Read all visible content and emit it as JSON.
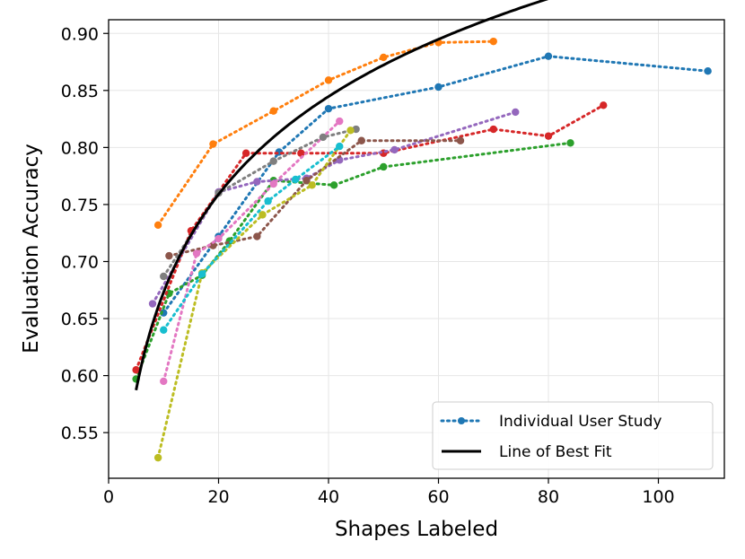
{
  "chart_data": {
    "type": "line",
    "title": "",
    "xlabel": "Shapes Labeled",
    "ylabel": "Evaluation Accuracy",
    "xlim": [
      0,
      112
    ],
    "ylim": [
      0.51,
      0.912
    ],
    "xticks": [
      0,
      20,
      40,
      60,
      80,
      100
    ],
    "xtick_labels": [
      "0",
      "20",
      "40",
      "60",
      "80",
      "100"
    ],
    "yticks": [
      0.55,
      0.6,
      0.65,
      0.7,
      0.75,
      0.8,
      0.85,
      0.9
    ],
    "ytick_labels": [
      "0.55",
      "0.60",
      "0.65",
      "0.70",
      "0.75",
      "0.80",
      "0.85",
      "0.90"
    ],
    "grid": true,
    "legend_position": "bottom-right",
    "legend": [
      {
        "label": "Individual User Study",
        "color": "#1f77b4",
        "style": "dotted-marker"
      },
      {
        "label": "Line of Best Fit",
        "color": "#000000",
        "style": "solid"
      }
    ],
    "series": [
      {
        "name": "user-blue",
        "color": "#1f77b4",
        "x": [
          10,
          20,
          31,
          40,
          60,
          80,
          109
        ],
        "y": [
          0.655,
          0.722,
          0.796,
          0.834,
          0.853,
          0.88,
          0.867
        ]
      },
      {
        "name": "user-orange",
        "color": "#ff7f0e",
        "x": [
          9,
          19,
          30,
          40,
          50,
          60,
          70
        ],
        "y": [
          0.732,
          0.803,
          0.832,
          0.859,
          0.879,
          0.892,
          0.893
        ]
      },
      {
        "name": "user-green",
        "color": "#2ca02c",
        "x": [
          5,
          11,
          17,
          22,
          30,
          41,
          50,
          84
        ],
        "y": [
          0.597,
          0.672,
          0.688,
          0.718,
          0.771,
          0.767,
          0.783,
          0.804
        ]
      },
      {
        "name": "user-red",
        "color": "#d62728",
        "x": [
          5,
          15,
          25,
          35,
          50,
          70,
          80,
          90
        ],
        "y": [
          0.605,
          0.727,
          0.795,
          0.795,
          0.795,
          0.816,
          0.81,
          0.837
        ]
      },
      {
        "name": "user-purple",
        "color": "#9467bd",
        "x": [
          8,
          20,
          27,
          36,
          42,
          52,
          74
        ],
        "y": [
          0.663,
          0.761,
          0.77,
          0.773,
          0.789,
          0.798,
          0.831
        ]
      },
      {
        "name": "user-brown",
        "color": "#8c564b",
        "x": [
          11,
          19,
          27,
          36,
          46,
          64
        ],
        "y": [
          0.705,
          0.714,
          0.722,
          0.771,
          0.806,
          0.806
        ]
      },
      {
        "name": "user-pink",
        "color": "#e377c2",
        "x": [
          10,
          16,
          20,
          30,
          42
        ],
        "y": [
          0.595,
          0.707,
          0.72,
          0.768,
          0.823
        ]
      },
      {
        "name": "user-gray",
        "color": "#7f7f7f",
        "x": [
          10,
          20,
          30,
          39,
          45
        ],
        "y": [
          0.687,
          0.76,
          0.788,
          0.809,
          0.816
        ]
      },
      {
        "name": "user-olive",
        "color": "#bcbd22",
        "x": [
          9,
          17,
          28,
          37,
          44
        ],
        "y": [
          0.528,
          0.69,
          0.741,
          0.767,
          0.815
        ]
      },
      {
        "name": "user-cyan",
        "color": "#17becf",
        "x": [
          10,
          17,
          29,
          34,
          42
        ],
        "y": [
          0.64,
          0.689,
          0.753,
          0.772,
          0.801
        ]
      }
    ],
    "fit": {
      "name": "Line of Best Fit",
      "color": "#000000",
      "model": "0.1238*ln(x)+0.3880",
      "x_range": [
        5,
        110
      ]
    }
  }
}
